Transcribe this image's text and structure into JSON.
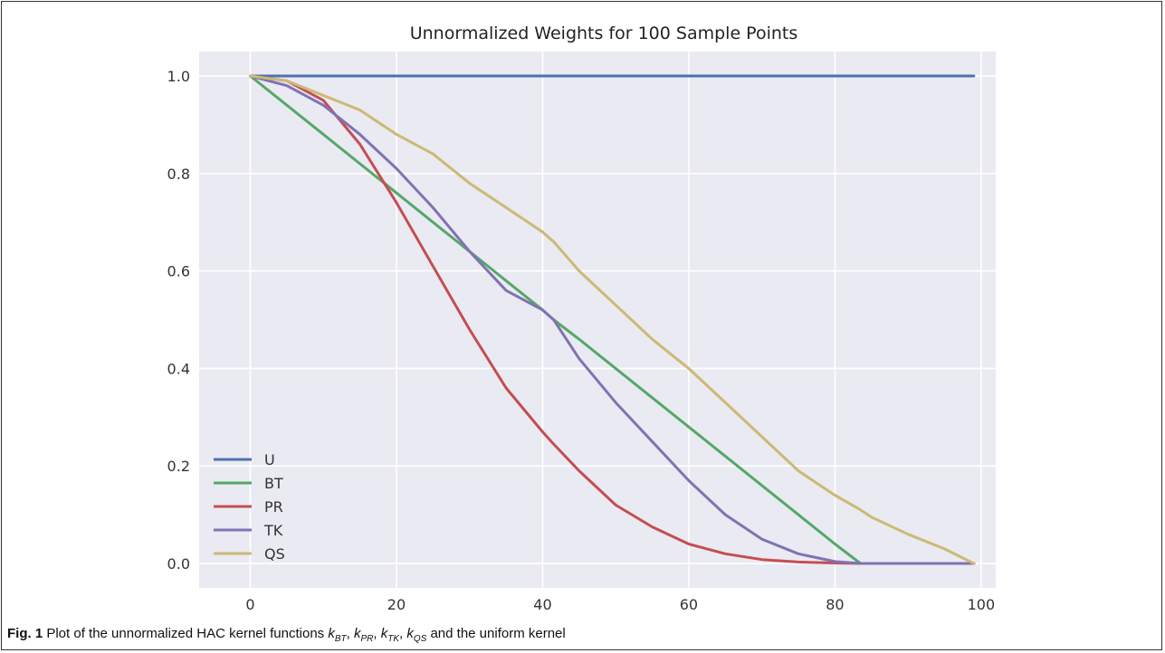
{
  "chart_data": {
    "type": "line",
    "title": "Unnormalized Weights for 100 Sample Points",
    "xlabel": "",
    "ylabel": "",
    "xlim": [
      -7,
      102
    ],
    "ylim": [
      -0.05,
      1.05
    ],
    "xticks": [
      0,
      20,
      40,
      60,
      80,
      100
    ],
    "xtick_labels": [
      "0",
      "20",
      "40",
      "60",
      "80",
      "100"
    ],
    "yticks": [
      0.0,
      0.2,
      0.4,
      0.6,
      0.8,
      1.0
    ],
    "ytick_labels": [
      "0.0",
      "0.2",
      "0.4",
      "0.6",
      "0.8",
      "1.0"
    ],
    "grid": true,
    "legend_position": "lower-left",
    "background": "#EAEAF2",
    "x": [
      0,
      5,
      10,
      15,
      20,
      25,
      30,
      35,
      40,
      41.5,
      45,
      50,
      55,
      60,
      65,
      70,
      75,
      80,
      83.5,
      85,
      90,
      95,
      99
    ],
    "series": [
      {
        "name": "U",
        "color": "#4C72B0",
        "values": [
          1,
          1,
          1,
          1,
          1,
          1,
          1,
          1,
          1,
          1,
          1,
          1,
          1,
          1,
          1,
          1,
          1,
          1,
          1,
          1,
          1,
          1,
          1
        ]
      },
      {
        "name": "BT",
        "color": "#55A868",
        "values": [
          1,
          0.94,
          0.88,
          0.82,
          0.76,
          0.7,
          0.64,
          0.58,
          0.52,
          0.5,
          0.46,
          0.4,
          0.34,
          0.28,
          0.22,
          0.16,
          0.1,
          0.04,
          0,
          0,
          0,
          0,
          0
        ]
      },
      {
        "name": "PR",
        "color": "#C44E52",
        "values": [
          1,
          0.99,
          0.95,
          0.86,
          0.74,
          0.61,
          0.48,
          0.36,
          0.27,
          0.245,
          0.19,
          0.12,
          0.075,
          0.04,
          0.02,
          0.008,
          0.003,
          0.001,
          0,
          0,
          0,
          0,
          0
        ]
      },
      {
        "name": "TK",
        "color": "#8172B2",
        "values": [
          1,
          0.98,
          0.94,
          0.88,
          0.81,
          0.73,
          0.64,
          0.56,
          0.52,
          0.5,
          0.42,
          0.33,
          0.25,
          0.17,
          0.1,
          0.05,
          0.02,
          0.004,
          0,
          0,
          0,
          0,
          0
        ]
      },
      {
        "name": "QS",
        "color": "#CCB974",
        "values": [
          1,
          0.99,
          0.96,
          0.93,
          0.88,
          0.84,
          0.78,
          0.73,
          0.68,
          0.66,
          0.6,
          0.53,
          0.46,
          0.4,
          0.33,
          0.26,
          0.19,
          0.14,
          0.11,
          0.095,
          0.06,
          0.03,
          0
        ]
      }
    ]
  },
  "caption": {
    "label": "Fig. 1",
    "text_before": " Plot of the unnormalized HAC kernel functions ",
    "kernels": [
      {
        "base": "k",
        "sub": "BT",
        "sep": ", "
      },
      {
        "base": "k",
        "sub": "PR",
        "sep": ", "
      },
      {
        "base": "k",
        "sub": "TK",
        "sep": ", "
      },
      {
        "base": "k",
        "sub": "QS",
        "sep": ""
      }
    ],
    "text_after": " and the uniform kernel"
  }
}
